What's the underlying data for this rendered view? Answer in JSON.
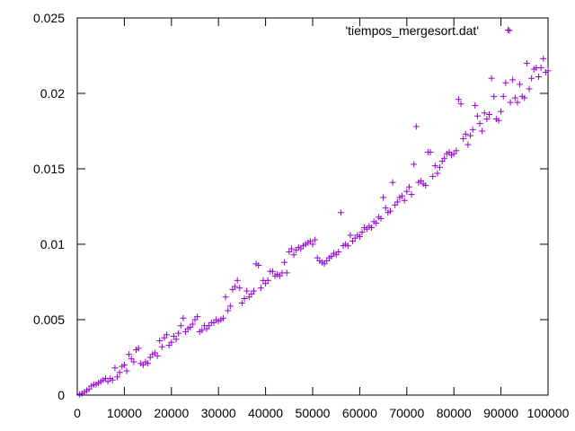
{
  "chart_data": {
    "type": "scatter",
    "title": "",
    "xlabel": "",
    "ylabel": "",
    "xlim": [
      0,
      100000
    ],
    "ylim": [
      0,
      0.025
    ],
    "grid": false,
    "legend_position": "top-right",
    "x_ticks": [
      "0",
      "10000",
      "20000",
      "30000",
      "40000",
      "50000",
      "60000",
      "70000",
      "80000",
      "90000",
      "100000"
    ],
    "y_ticks": [
      "0",
      "0.005",
      "0.01",
      "0.015",
      "0.02",
      "0.025"
    ],
    "series": [
      {
        "name": "'tiempos_mergesort.dat'",
        "color": "#9400d3",
        "marker": "plus",
        "points": [
          [
            500,
            5e-05
          ],
          [
            1000,
            0.0001
          ],
          [
            1500,
            0.0002
          ],
          [
            2000,
            0.0003
          ],
          [
            2500,
            0.0004
          ],
          [
            3000,
            0.0006
          ],
          [
            3500,
            0.0007
          ],
          [
            4000,
            0.0007
          ],
          [
            4500,
            0.0008
          ],
          [
            5000,
            0.0009
          ],
          [
            5500,
            0.001
          ],
          [
            6000,
            0.0011
          ],
          [
            6500,
            0.0009
          ],
          [
            7000,
            0.0011
          ],
          [
            7500,
            0.001
          ],
          [
            8000,
            0.0018
          ],
          [
            8500,
            0.0012
          ],
          [
            9000,
            0.0015
          ],
          [
            9500,
            0.0019
          ],
          [
            10000,
            0.002
          ],
          [
            10500,
            0.0016
          ],
          [
            11000,
            0.0027
          ],
          [
            11500,
            0.0024
          ],
          [
            12000,
            0.0022
          ],
          [
            12500,
            0.003
          ],
          [
            13000,
            0.0031
          ],
          [
            13500,
            0.0021
          ],
          [
            14000,
            0.002
          ],
          [
            14500,
            0.0022
          ],
          [
            15000,
            0.0021
          ],
          [
            15500,
            0.0025
          ],
          [
            16000,
            0.0027
          ],
          [
            16500,
            0.0028
          ],
          [
            17000,
            0.0026
          ],
          [
            17500,
            0.0036
          ],
          [
            18000,
            0.0032
          ],
          [
            18500,
            0.0038
          ],
          [
            19000,
            0.004
          ],
          [
            19500,
            0.0033
          ],
          [
            20000,
            0.0035
          ],
          [
            20500,
            0.0039
          ],
          [
            21000,
            0.0037
          ],
          [
            21500,
            0.0041
          ],
          [
            22000,
            0.0046
          ],
          [
            22500,
            0.0051
          ],
          [
            23000,
            0.0042
          ],
          [
            23500,
            0.0044
          ],
          [
            24000,
            0.0045
          ],
          [
            24500,
            0.0047
          ],
          [
            25000,
            0.005
          ],
          [
            25500,
            0.0052
          ],
          [
            26000,
            0.0042
          ],
          [
            26500,
            0.0043
          ],
          [
            27000,
            0.0046
          ],
          [
            27500,
            0.0044
          ],
          [
            28000,
            0.0046
          ],
          [
            28500,
            0.0048
          ],
          [
            29000,
            0.0048
          ],
          [
            29500,
            0.005
          ],
          [
            30000,
            0.0049
          ],
          [
            30500,
            0.005
          ],
          [
            31000,
            0.0051
          ],
          [
            31500,
            0.0065
          ],
          [
            32000,
            0.0056
          ],
          [
            32500,
            0.0059
          ],
          [
            33000,
            0.007
          ],
          [
            33500,
            0.0072
          ],
          [
            34000,
            0.0076
          ],
          [
            34500,
            0.0071
          ],
          [
            35000,
            0.0061
          ],
          [
            35500,
            0.0064
          ],
          [
            36000,
            0.0069
          ],
          [
            36500,
            0.0065
          ],
          [
            37000,
            0.0067
          ],
          [
            37500,
            0.0069
          ],
          [
            38000,
            0.0087
          ],
          [
            38500,
            0.0086
          ],
          [
            39000,
            0.0071
          ],
          [
            39500,
            0.0076
          ],
          [
            40000,
            0.0074
          ],
          [
            40500,
            0.0076
          ],
          [
            41000,
            0.0082
          ],
          [
            41500,
            0.0082
          ],
          [
            42000,
            0.0079
          ],
          [
            42500,
            0.008
          ],
          [
            43000,
            0.0079
          ],
          [
            43500,
            0.0081
          ],
          [
            44000,
            0.0088
          ],
          [
            44500,
            0.0081
          ],
          [
            45000,
            0.0095
          ],
          [
            45500,
            0.0097
          ],
          [
            46000,
            0.0093
          ],
          [
            46500,
            0.0096
          ],
          [
            47000,
            0.0098
          ],
          [
            47500,
            0.0097
          ],
          [
            48000,
            0.0099
          ],
          [
            48500,
            0.01
          ],
          [
            49000,
            0.0101
          ],
          [
            49500,
            0.0102
          ],
          [
            50000,
            0.01
          ],
          [
            50500,
            0.0103
          ],
          [
            51000,
            0.0091
          ],
          [
            51500,
            0.0089
          ],
          [
            52000,
            0.0088
          ],
          [
            52500,
            0.0087
          ],
          [
            53000,
            0.0089
          ],
          [
            53500,
            0.0091
          ],
          [
            54000,
            0.0092
          ],
          [
            54500,
            0.0094
          ],
          [
            55000,
            0.0093
          ],
          [
            55500,
            0.0095
          ],
          [
            56000,
            0.0121
          ],
          [
            56500,
            0.0099
          ],
          [
            57000,
            0.01
          ],
          [
            57500,
            0.0099
          ],
          [
            58000,
            0.0106
          ],
          [
            58500,
            0.0102
          ],
          [
            59000,
            0.0104
          ],
          [
            59500,
            0.0106
          ],
          [
            60000,
            0.0105
          ],
          [
            60500,
            0.0108
          ],
          [
            61000,
            0.0111
          ],
          [
            61500,
            0.011
          ],
          [
            62000,
            0.0112
          ],
          [
            62500,
            0.0111
          ],
          [
            63000,
            0.0115
          ],
          [
            63500,
            0.0114
          ],
          [
            64000,
            0.0118
          ],
          [
            64500,
            0.0117
          ],
          [
            65000,
            0.0131
          ],
          [
            65500,
            0.0124
          ],
          [
            66000,
            0.0121
          ],
          [
            66500,
            0.0122
          ],
          [
            67000,
            0.0141
          ],
          [
            67500,
            0.0126
          ],
          [
            68000,
            0.0128
          ],
          [
            68500,
            0.0131
          ],
          [
            69000,
            0.0132
          ],
          [
            69500,
            0.0129
          ],
          [
            70000,
            0.0135
          ],
          [
            70500,
            0.0138
          ],
          [
            71000,
            0.0133
          ],
          [
            71500,
            0.0153
          ],
          [
            72000,
            0.0178
          ],
          [
            72500,
            0.0141
          ],
          [
            73000,
            0.0142
          ],
          [
            73500,
            0.014
          ],
          [
            74000,
            0.0139
          ],
          [
            74500,
            0.0161
          ],
          [
            75000,
            0.0161
          ],
          [
            75500,
            0.0145
          ],
          [
            76000,
            0.0152
          ],
          [
            76500,
            0.0147
          ],
          [
            77000,
            0.0151
          ],
          [
            77500,
            0.0155
          ],
          [
            78000,
            0.0157
          ],
          [
            78500,
            0.016
          ],
          [
            79000,
            0.0161
          ],
          [
            79500,
            0.0159
          ],
          [
            80000,
            0.016
          ],
          [
            80500,
            0.0162
          ],
          [
            81000,
            0.0196
          ],
          [
            81500,
            0.0193
          ],
          [
            82000,
            0.017
          ],
          [
            82500,
            0.0173
          ],
          [
            83000,
            0.0166
          ],
          [
            83500,
            0.0172
          ],
          [
            84000,
            0.0176
          ],
          [
            84500,
            0.0192
          ],
          [
            85000,
            0.0185
          ],
          [
            85500,
            0.018
          ],
          [
            86000,
            0.0175
          ],
          [
            86500,
            0.0187
          ],
          [
            87000,
            0.0183
          ],
          [
            87500,
            0.0186
          ],
          [
            88000,
            0.021
          ],
          [
            88500,
            0.0198
          ],
          [
            89000,
            0.0183
          ],
          [
            89500,
            0.0182
          ],
          [
            90000,
            0.0188
          ],
          [
            90500,
            0.0198
          ],
          [
            91000,
            0.0207
          ],
          [
            91500,
            0.0242
          ],
          [
            92000,
            0.0194
          ],
          [
            92500,
            0.0209
          ],
          [
            93000,
            0.0197
          ],
          [
            93500,
            0.0194
          ],
          [
            94000,
            0.0206
          ],
          [
            94500,
            0.0198
          ],
          [
            95000,
            0.0197
          ],
          [
            95500,
            0.022
          ],
          [
            96000,
            0.0203
          ],
          [
            96500,
            0.021
          ],
          [
            97000,
            0.0216
          ],
          [
            97500,
            0.0217
          ],
          [
            98000,
            0.0211
          ],
          [
            98500,
            0.0217
          ],
          [
            99000,
            0.0223
          ],
          [
            99500,
            0.0214
          ],
          [
            100000,
            0.0215
          ]
        ]
      }
    ]
  }
}
